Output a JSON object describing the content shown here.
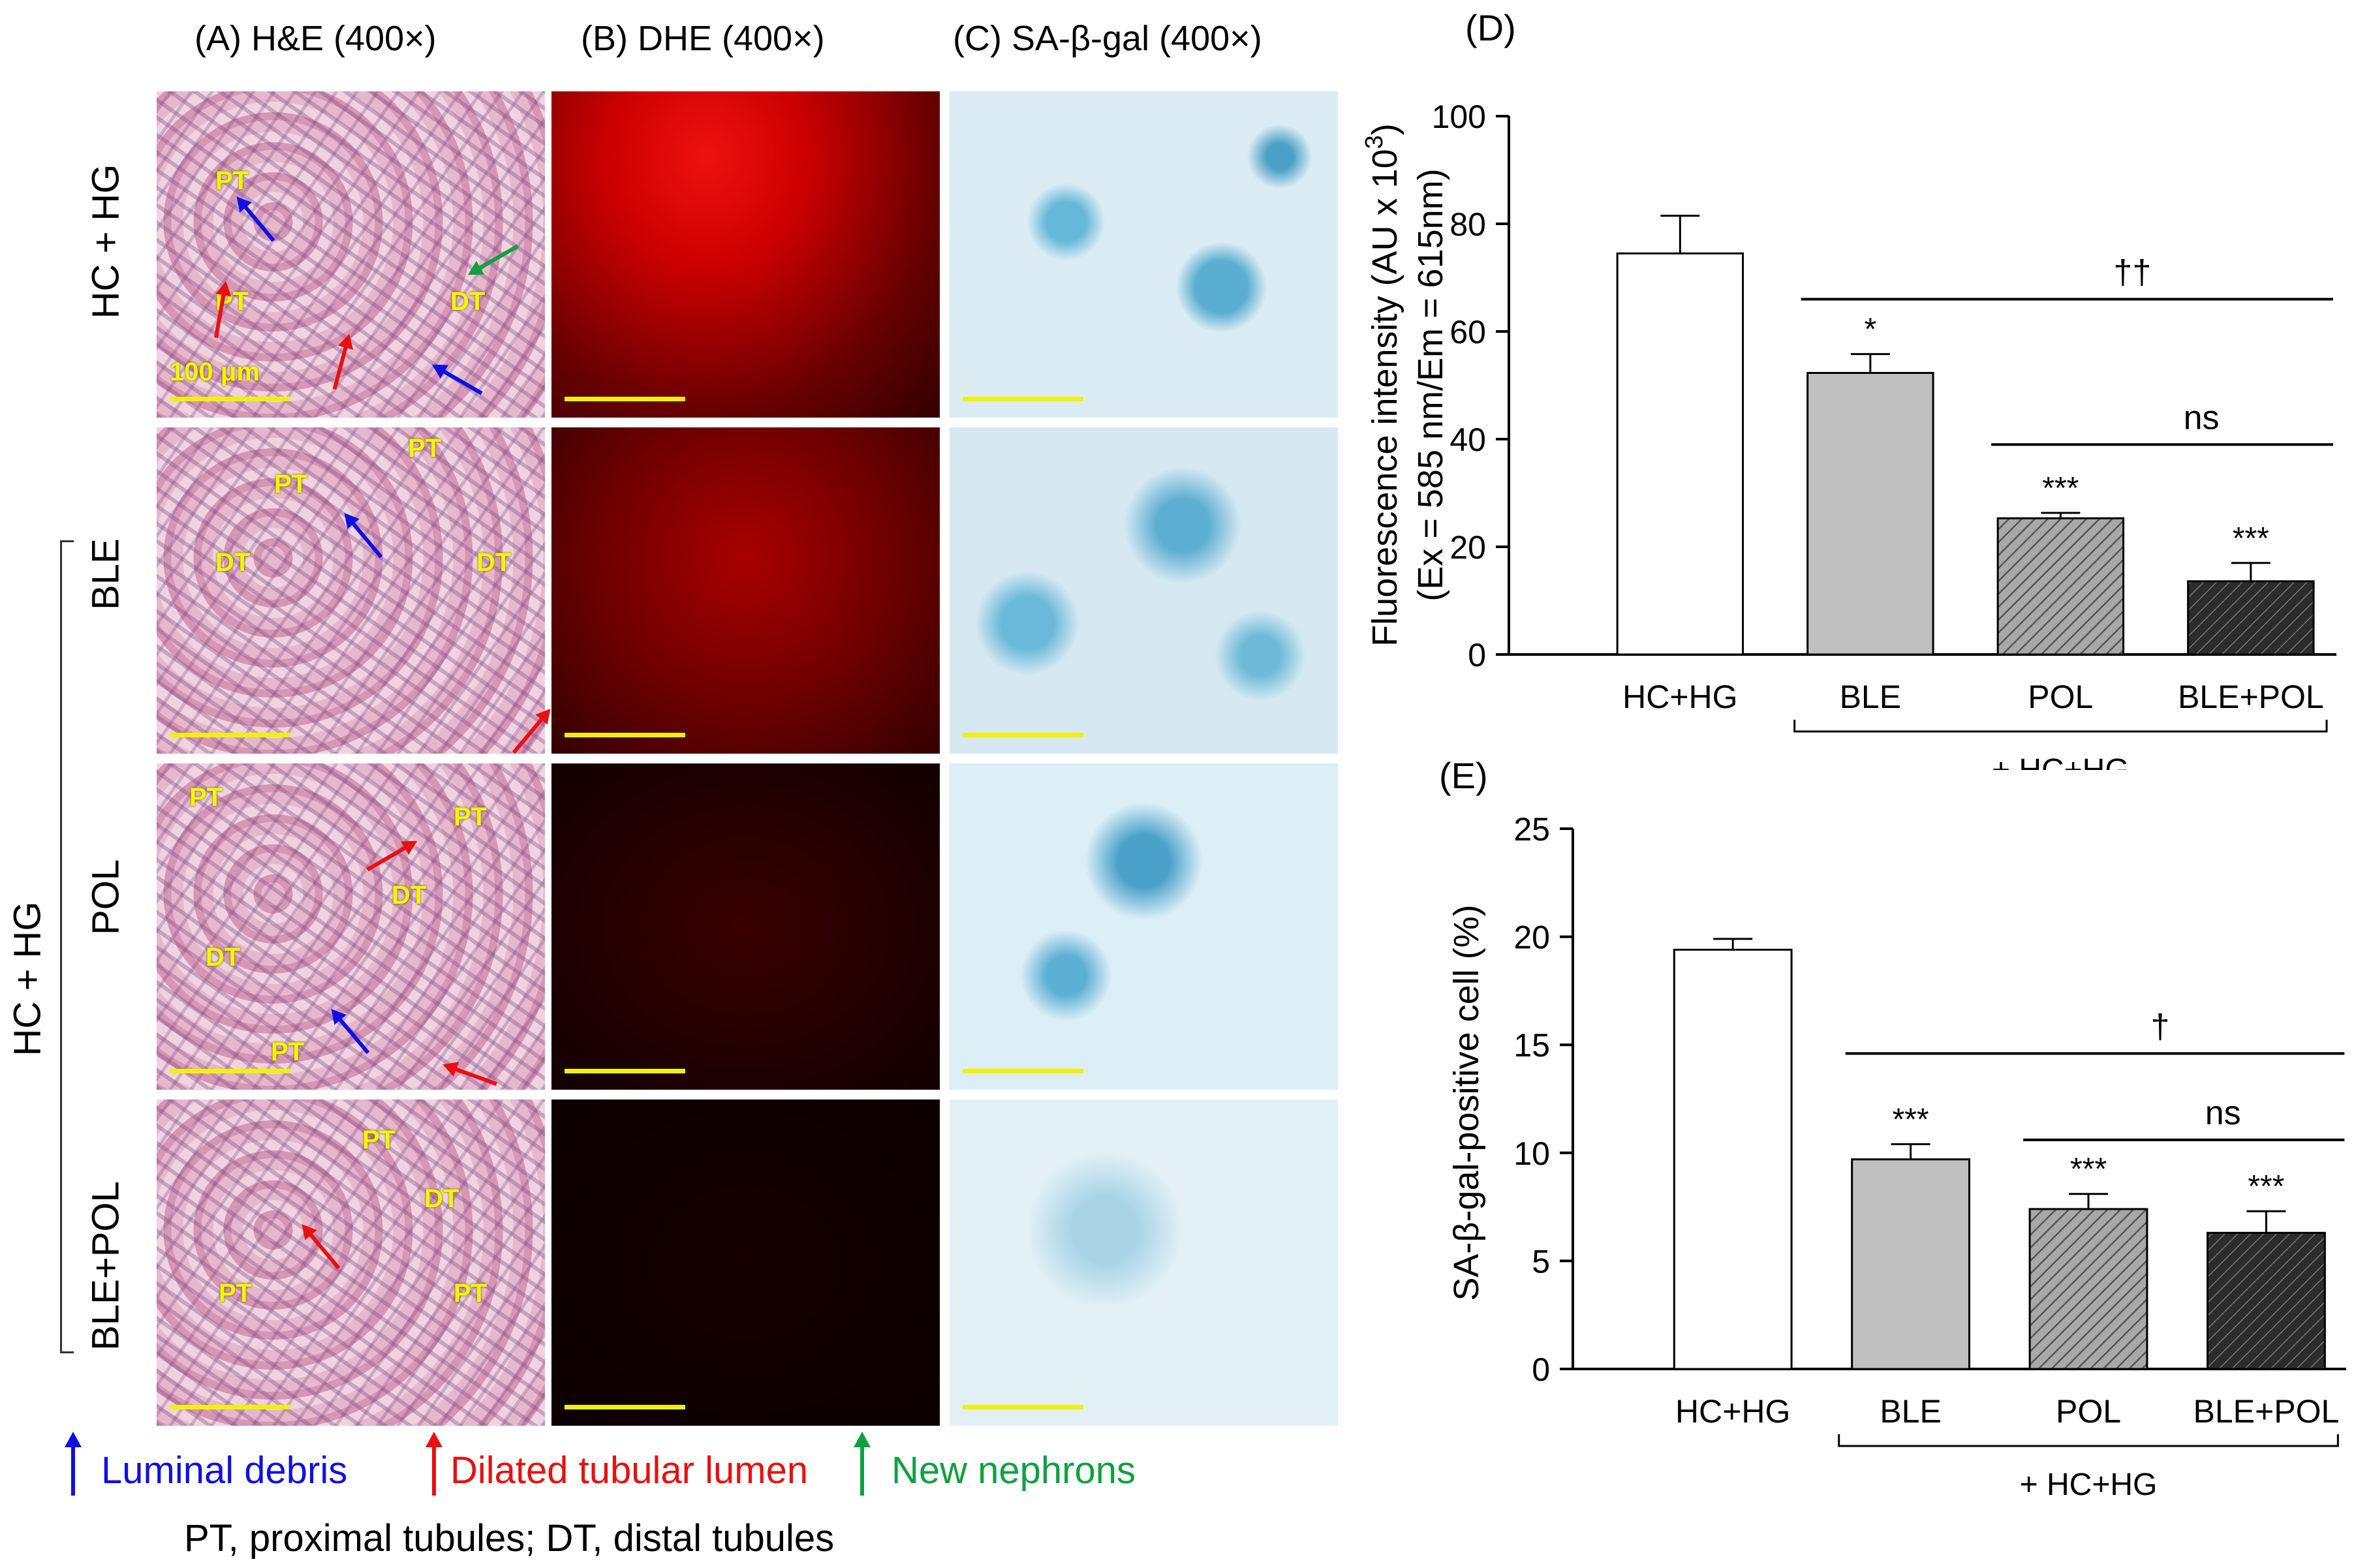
{
  "panels": {
    "A": {
      "title": "(A) H&E (400×)"
    },
    "B": {
      "title": "(B) DHE (400×)"
    },
    "C": {
      "title": "(C) SA-β-gal (400×)"
    }
  },
  "row_labels": [
    "HC + HG",
    "BLE",
    "POL",
    "BLE+POL"
  ],
  "group_label": "HC + HG",
  "scale_label": "100 μm",
  "he_tags": [
    [
      "PT",
      "PT",
      "DT"
    ],
    [
      "PT",
      "DT",
      "PT",
      "DT"
    ],
    [
      "PT",
      "PT",
      "DT",
      "DT",
      "PT"
    ],
    [
      "PT",
      "DT",
      "PT",
      "PT"
    ]
  ],
  "legend": {
    "blue": "Luminal debris",
    "red": "Dilated tubular lumen",
    "green": "New nephrons",
    "abbrev": "PT, proximal tubules; DT, distal tubules"
  },
  "colors": {
    "blue_arrow": "#1010e0",
    "red_arrow": "#e81010",
    "green_arrow": "#10a040",
    "scalebar": "#f2f200"
  },
  "chart_data": [
    {
      "id": "D",
      "panel_label": "(D)",
      "type": "bar",
      "categories": [
        "HC+HG",
        "BLE",
        "POL",
        "BLE+POL"
      ],
      "values": [
        74.5,
        52.3,
        25.3,
        13.6
      ],
      "errors": [
        7.0,
        3.5,
        1.0,
        3.4
      ],
      "significance": [
        "",
        "*",
        "***",
        "***"
      ],
      "fills": [
        "white",
        "gray",
        "hatched-light",
        "hatched-dark"
      ],
      "ylabel_line1": "Fluorescence intensity (AU x 10",
      "ylabel_sup": "3",
      "ylabel_line1_end": ")",
      "ylabel_line2": "(Ex = 585 nm/Em = 615nm)",
      "ylim": [
        0,
        100
      ],
      "yticks": [
        0,
        20,
        40,
        60,
        80,
        100
      ],
      "bracket_label": "+ HC+HG",
      "comparisons": [
        {
          "label": "††",
          "from": 1,
          "to": 3,
          "level": 66
        },
        {
          "label": "ns",
          "from": 2,
          "to": 3,
          "level": 39
        }
      ]
    },
    {
      "id": "E",
      "panel_label": "(E)",
      "type": "bar",
      "categories": [
        "HC+HG",
        "BLE",
        "POL",
        "BLE+POL"
      ],
      "values": [
        19.4,
        9.7,
        7.4,
        6.3
      ],
      "errors": [
        0.5,
        0.7,
        0.7,
        1.0
      ],
      "significance": [
        "",
        "***",
        "***",
        "***"
      ],
      "fills": [
        "white",
        "gray",
        "hatched-light",
        "hatched-dark"
      ],
      "ylabel": "SA-β-gal-positive cell (%)",
      "ylim": [
        0,
        25
      ],
      "yticks": [
        0,
        5,
        10,
        15,
        20,
        25
      ],
      "bracket_label": "+ HC+HG",
      "comparisons": [
        {
          "label": "†",
          "from": 1,
          "to": 3,
          "level": 14.6
        },
        {
          "label": "ns",
          "from": 2,
          "to": 3,
          "level": 10.6
        }
      ]
    }
  ]
}
